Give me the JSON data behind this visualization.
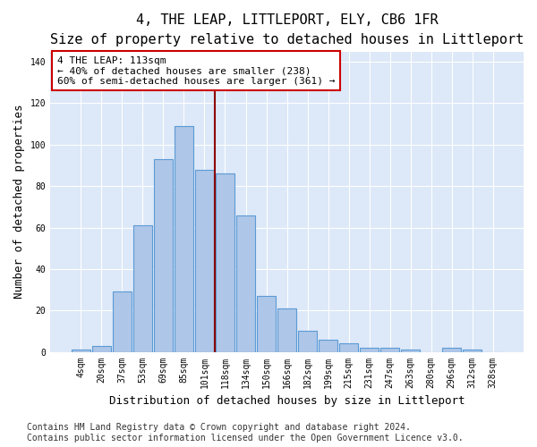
{
  "title": "4, THE LEAP, LITTLEPORT, ELY, CB6 1FR",
  "subtitle": "Size of property relative to detached houses in Littleport",
  "xlabel": "Distribution of detached houses by size in Littleport",
  "ylabel": "Number of detached properties",
  "categories": [
    "4sqm",
    "20sqm",
    "37sqm",
    "53sqm",
    "69sqm",
    "85sqm",
    "101sqm",
    "118sqm",
    "134sqm",
    "150sqm",
    "166sqm",
    "182sqm",
    "199sqm",
    "215sqm",
    "231sqm",
    "247sqm",
    "263sqm",
    "280sqm",
    "296sqm",
    "312sqm",
    "328sqm"
  ],
  "values": [
    1,
    3,
    29,
    61,
    93,
    109,
    88,
    86,
    66,
    27,
    21,
    10,
    6,
    4,
    2,
    2,
    1,
    0,
    2,
    1,
    0
  ],
  "bar_color": "#aec6e8",
  "bar_edge_color": "#5b9bd5",
  "vline_x": 6.5,
  "vline_color": "#8b0000",
  "annotation_text": "4 THE LEAP: 113sqm\n← 40% of detached houses are smaller (238)\n60% of semi-detached houses are larger (361) →",
  "annotation_box_color": "#ffffff",
  "annotation_box_edge": "#cc0000",
  "ylim": [
    0,
    145
  ],
  "yticks": [
    0,
    20,
    40,
    60,
    80,
    100,
    120,
    140
  ],
  "bg_color": "#dde8f8",
  "footer_line1": "Contains HM Land Registry data © Crown copyright and database right 2024.",
  "footer_line2": "Contains public sector information licensed under the Open Government Licence v3.0.",
  "title_fontsize": 11,
  "subtitle_fontsize": 10,
  "xlabel_fontsize": 9,
  "ylabel_fontsize": 9,
  "tick_fontsize": 7,
  "footer_fontsize": 7,
  "annotation_fontsize": 8
}
